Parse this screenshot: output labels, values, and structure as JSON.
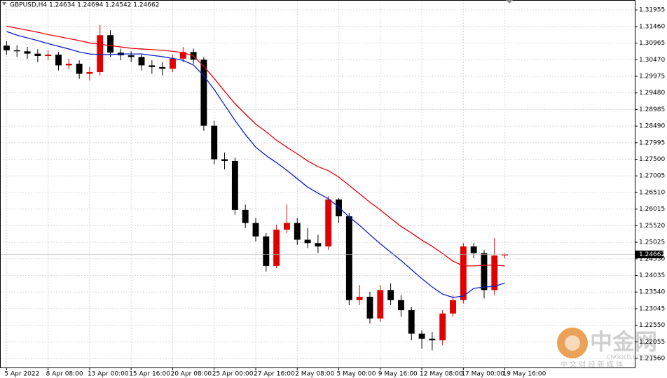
{
  "chart_data": {
    "type": "candlestick",
    "title": "GBPUSD,H4  1.24634 1.24694 1.24542 1.24662",
    "categories": [
      "5 Apr 2022",
      null,
      null,
      null,
      "8 Apr 08:00",
      null,
      null,
      null,
      "13 Apr 00:00",
      null,
      null,
      null,
      "15 Apr 16:00",
      null,
      null,
      null,
      "20 Apr 08:00",
      null,
      null,
      null,
      "25 Apr 00:00",
      null,
      null,
      null,
      "27 Apr 16:00",
      null,
      null,
      null,
      "2 May 08:00",
      null,
      null,
      null,
      "5 May 00:00",
      null,
      null,
      null,
      "9 May 16:00",
      null,
      null,
      null,
      "12 May 08:00",
      null,
      null,
      null,
      "17 May 00:00",
      null,
      null,
      null,
      "19 May 16:00"
    ],
    "open": [
      1.3089,
      1.3075,
      1.3072,
      1.3065,
      1.3058,
      1.3062,
      1.303,
      1.3035,
      1.3005,
      1.301,
      1.312,
      1.3068,
      1.306,
      1.3055,
      1.303,
      1.3025,
      1.302,
      1.305,
      1.307,
      1.3047,
      1.285,
      1.275,
      1.2745,
      1.2599,
      1.256,
      1.252,
      1.2432,
      1.254,
      1.256,
      1.251,
      1.25,
      1.249,
      1.263,
      1.258,
      1.233,
      1.234,
      1.2275,
      1.236,
      1.233,
      1.23,
      1.223,
      1.2215,
      1.221,
      1.229,
      1.233,
      1.249,
      1.247,
      1.236,
      1.24634
    ],
    "high": [
      1.3102,
      1.309,
      1.3085,
      1.3078,
      1.3075,
      1.307,
      1.305,
      1.3045,
      1.3025,
      1.315,
      1.3135,
      1.308,
      1.3072,
      1.3065,
      1.3045,
      1.304,
      1.3062,
      1.3085,
      1.308,
      1.3055,
      1.2865,
      1.277,
      1.2755,
      1.2615,
      1.2575,
      1.253,
      1.2555,
      1.2615,
      1.2575,
      1.2545,
      1.2525,
      1.264,
      1.2635,
      1.259,
      1.2375,
      1.2355,
      1.2375,
      1.238,
      1.2345,
      1.231,
      1.224,
      1.2235,
      1.23,
      1.2345,
      1.25,
      1.25,
      1.248,
      1.2515,
      1.24694
    ],
    "low": [
      1.3062,
      1.3055,
      1.305,
      1.304,
      1.3045,
      1.3015,
      1.3018,
      1.299,
      1.2985,
      1.3,
      1.3055,
      1.3045,
      1.304,
      1.3015,
      1.3005,
      1.3,
      1.301,
      1.304,
      1.3035,
      1.2835,
      1.2735,
      1.272,
      1.2585,
      1.2545,
      1.2505,
      1.2415,
      1.2425,
      1.253,
      1.2495,
      1.2485,
      1.247,
      1.248,
      1.256,
      1.2315,
      1.2315,
      1.226,
      1.2265,
      1.2315,
      1.228,
      1.221,
      1.2185,
      1.218,
      1.2195,
      1.228,
      1.232,
      1.2455,
      1.2335,
      1.2345,
      1.24542
    ],
    "close": [
      1.3075,
      1.3072,
      1.3065,
      1.3058,
      1.3062,
      1.303,
      1.3035,
      1.3005,
      1.301,
      1.312,
      1.3068,
      1.306,
      1.3055,
      1.303,
      1.3025,
      1.302,
      1.305,
      1.307,
      1.3047,
      1.285,
      1.275,
      1.2745,
      1.2599,
      1.256,
      1.252,
      1.2432,
      1.254,
      1.256,
      1.251,
      1.25,
      1.249,
      1.263,
      1.258,
      1.233,
      1.234,
      1.2275,
      1.236,
      1.233,
      1.23,
      1.223,
      1.2215,
      1.221,
      1.229,
      1.233,
      1.249,
      1.247,
      1.236,
      1.2463,
      1.24662
    ],
    "up_color": "#e00000",
    "down_color": "#000000",
    "moving_averages": [
      {
        "color": "#e8000b",
        "values": [
          1.3147,
          1.3141,
          1.3135,
          1.3129,
          1.3122,
          1.3116,
          1.311,
          1.3104,
          1.3097,
          1.3093,
          1.3089,
          1.3085,
          1.3081,
          1.3079,
          1.3077,
          1.3075,
          1.3072,
          1.3068,
          1.3058,
          1.3027,
          1.2991,
          1.2953,
          1.2916,
          1.2885,
          1.2855,
          1.2832,
          1.2807,
          1.2786,
          1.2766,
          1.2745,
          1.2728,
          1.2716,
          1.2697,
          1.2672,
          1.2647,
          1.2622,
          1.2599,
          1.2574,
          1.255,
          1.253,
          1.2509,
          1.249,
          1.2469,
          1.2446,
          1.2432,
          1.2432,
          1.2434,
          1.2434,
          1.2432
        ]
      },
      {
        "color": "#0a1ec8",
        "values": [
          1.3131,
          1.312,
          1.3112,
          1.3104,
          1.3095,
          1.3087,
          1.3079,
          1.307,
          1.3064,
          1.3062,
          1.3062,
          1.3064,
          1.3064,
          1.3064,
          1.306,
          1.3056,
          1.3051,
          1.3045,
          1.3031,
          1.2999,
          1.2958,
          1.2912,
          1.2866,
          1.2824,
          1.2786,
          1.2761,
          1.274,
          1.2717,
          1.2692,
          1.2667,
          1.2649,
          1.2632,
          1.2607,
          1.2578,
          1.2553,
          1.2525,
          1.2498,
          1.2473,
          1.2448,
          1.2421,
          1.2394,
          1.2369,
          1.2348,
          1.2338,
          1.2342,
          1.2365,
          1.2369,
          1.2371,
          1.2381
        ]
      }
    ],
    "current_price": 1.24662,
    "ylim": [
      1.2129,
      1.3225
    ],
    "yticks": [
      1.31955,
      {
        "value": 1.3146,
        "label": "1.31460"
      },
      1.30965,
      {
        "value": 1.3047,
        "label": "1.30470"
      },
      1.29975,
      {
        "value": 1.2948,
        "label": "1.29480"
      },
      1.28985,
      {
        "value": 1.2849,
        "label": "1.28490"
      },
      1.27995,
      {
        "value": 1.275,
        "label": "1.27500"
      },
      1.27005,
      {
        "value": 1.2651,
        "label": "1.26510"
      },
      1.26015,
      {
        "value": 1.2552,
        "label": "1.25520"
      },
      1.25025,
      {
        "value": 1.2453,
        "label": "1.24530"
      },
      1.24035,
      {
        "value": 1.2354,
        "label": "1.23540"
      },
      1.23045,
      {
        "value": 1.2255,
        "label": "1.22550"
      },
      1.22055,
      {
        "value": 1.2156,
        "label": "1.21560"
      }
    ],
    "grid": true
  },
  "watermark": {
    "brand": "中金网",
    "site": "CNGOLD.COM.CN",
    "slogan": "中 文 财 经 新 媒 体"
  }
}
